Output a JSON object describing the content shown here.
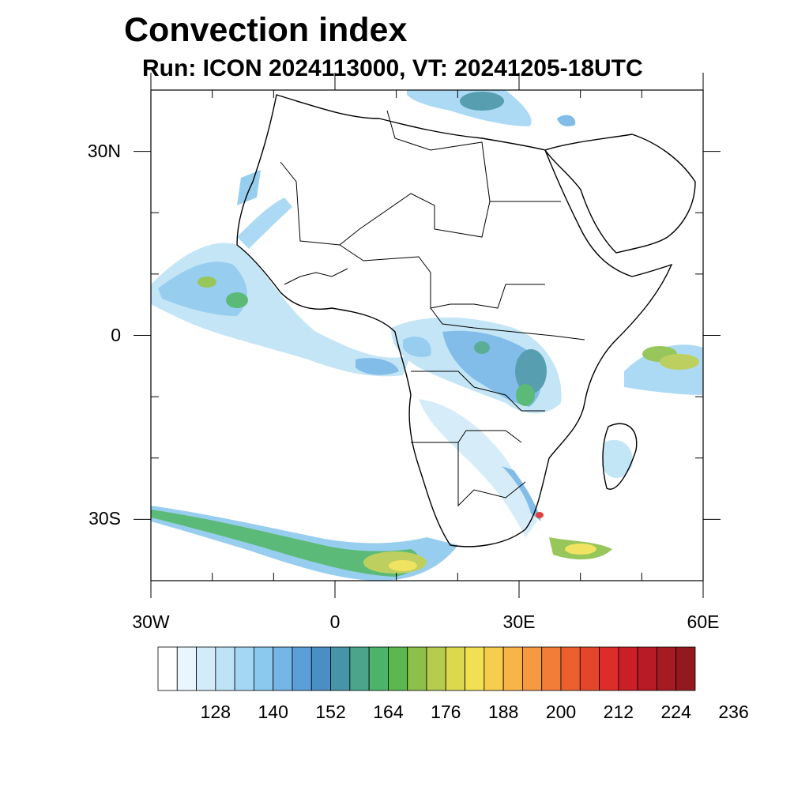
{
  "title": "Convection index",
  "subtitle": "Run: ICON 2024113000,  VT: 20241205-18UTC",
  "map": {
    "lat_labels": [
      "30N",
      "0",
      "30S"
    ],
    "lon_labels": [
      "30W",
      "0",
      "30E",
      "60E"
    ],
    "lat_values": [
      30,
      0,
      -30
    ],
    "lon_values": [
      -30,
      0,
      30,
      60
    ],
    "lat_range": [
      -40,
      40
    ],
    "lon_range": [
      -30,
      60
    ]
  },
  "colorbar": {
    "labels": [
      "128",
      "140",
      "152",
      "164",
      "176",
      "188",
      "200",
      "212",
      "224",
      "236"
    ],
    "colors": [
      "#ffffff",
      "#eaf6fd",
      "#d2ecf9",
      "#bde3f6",
      "#a4d7f3",
      "#8cc9ee",
      "#74b6e6",
      "#5b9fd8",
      "#4a8fc4",
      "#4594a8",
      "#4aa58a",
      "#4bb36a",
      "#5ab84e",
      "#8cc04a",
      "#b6cc4e",
      "#dcd94e",
      "#f0e052",
      "#f7cd4d",
      "#f7b447",
      "#f59a3f",
      "#f27d37",
      "#ec6030",
      "#e4462c",
      "#dc2d2a",
      "#cb1f28",
      "#b81b25",
      "#a61a22",
      "#94191f"
    ]
  }
}
